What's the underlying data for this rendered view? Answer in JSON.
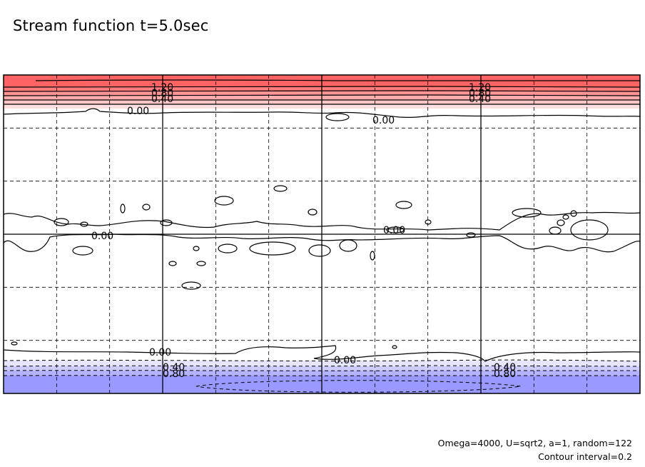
{
  "page": {
    "title": "Stream function t=5.0sec",
    "footnote_params": "Omega=4000, U=sqrt2, a=1, random=122",
    "footnote_interval": "Contour interval=0.2"
  },
  "chart_data": {
    "type": "contour",
    "title": "Stream function t=5.0sec",
    "xlabel": "",
    "ylabel": "",
    "axes": "none",
    "grid": {
      "major_lines": "solid",
      "minor_lines": "dashed",
      "major_columns": 4,
      "minor_columns": 12,
      "major_rows": 2,
      "minor_rows": 6
    },
    "contour_interval": 0.2,
    "colors": {
      "positive": "#ff6464",
      "negative": "#6464ff",
      "line": "#000000"
    },
    "shaded_bands": {
      "north": [
        {
          "level": 1.2,
          "color": "#ff6363"
        },
        {
          "level": 1.0,
          "color": "#ff7b7b"
        },
        {
          "level": 0.8,
          "color": "#ff9494"
        },
        {
          "level": 0.6,
          "color": "#ffadad"
        },
        {
          "level": 0.4,
          "color": "#ffc6c6"
        },
        {
          "level": 0.2,
          "color": "#ffdfdf"
        }
      ],
      "south": [
        {
          "level": -0.2,
          "color": "#e6e6ff"
        },
        {
          "level": -0.4,
          "color": "#ccccff"
        },
        {
          "level": -0.6,
          "color": "#b3b3ff"
        },
        {
          "level": -0.8,
          "color": "#9999ff"
        }
      ]
    },
    "contour_labels": [
      {
        "text": "1.20",
        "group": "north-left"
      },
      {
        "text": "0.80",
        "group": "north-left"
      },
      {
        "text": "0.40",
        "group": "north-left"
      },
      {
        "text": "1.20",
        "group": "north-right"
      },
      {
        "text": "0.80",
        "group": "north-right"
      },
      {
        "text": "0.40",
        "group": "north-right"
      },
      {
        "text": "0.00",
        "group": "north-zero-left"
      },
      {
        "text": "0.00",
        "group": "north-zero-right"
      },
      {
        "text": "0.00",
        "group": "equator-left"
      },
      {
        "text": "0.00",
        "group": "equator-right"
      },
      {
        "text": "0.00",
        "group": "south-zero-left"
      },
      {
        "text": "0.00",
        "group": "south-zero-right"
      },
      {
        "text": "0.40",
        "group": "south-left"
      },
      {
        "text": "0.80",
        "group": "south-left"
      },
      {
        "text": "0.40",
        "group": "south-right"
      },
      {
        "text": "0.80",
        "group": "south-right"
      }
    ]
  }
}
